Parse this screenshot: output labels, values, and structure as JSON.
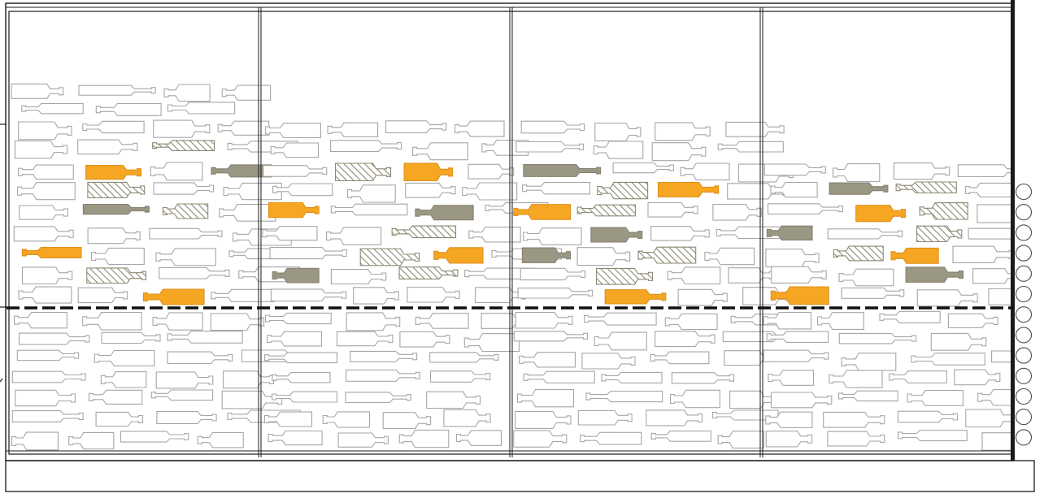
{
  "drawing": {
    "panel_count": 4,
    "knob_count": 13,
    "bottle_outline_color": "#a6a6a6",
    "bottle_fill_color": "#ffffff",
    "highlight_color": "#f5a623",
    "dark_color": "#9b9785",
    "hatch_color": "#8c8872",
    "frame_color": "#1a1a1a",
    "divider_line": "dashed"
  },
  "highlighted_bottles": [
    {
      "panel": 1,
      "row": 4,
      "col": 1,
      "style": "orange"
    },
    {
      "panel": 1,
      "row": 8,
      "col": 0,
      "style": "orange"
    },
    {
      "panel": 1,
      "row": 10,
      "col": 2,
      "style": "orange"
    },
    {
      "panel": 1,
      "row": 4,
      "col": 3,
      "style": "dark"
    },
    {
      "panel": 1,
      "row": 6,
      "col": 1,
      "style": "dark"
    },
    {
      "panel": 1,
      "row": 3,
      "col": 2,
      "style": "hatched"
    },
    {
      "panel": 1,
      "row": 5,
      "col": 1,
      "style": "hatched"
    },
    {
      "panel": 1,
      "row": 6,
      "col": 2,
      "style": "hatched"
    },
    {
      "panel": 1,
      "row": 9,
      "col": 1,
      "style": "hatched"
    },
    {
      "panel": 2,
      "row": 4,
      "col": 2,
      "style": "orange"
    },
    {
      "panel": 2,
      "row": 6,
      "col": 0,
      "style": "orange"
    },
    {
      "panel": 2,
      "row": 8,
      "col": 2,
      "style": "orange"
    },
    {
      "panel": 2,
      "row": 6,
      "col": 2,
      "style": "dark"
    },
    {
      "panel": 2,
      "row": 9,
      "col": 0,
      "style": "dark"
    },
    {
      "panel": 2,
      "row": 4,
      "col": 1,
      "style": "hatched"
    },
    {
      "panel": 2,
      "row": 7,
      "col": 2,
      "style": "hatched"
    },
    {
      "panel": 2,
      "row": 8,
      "col": 1,
      "style": "hatched"
    },
    {
      "panel": 2,
      "row": 9,
      "col": 2,
      "style": "hatched"
    },
    {
      "panel": 3,
      "row": 5,
      "col": 2,
      "style": "orange"
    },
    {
      "panel": 3,
      "row": 6,
      "col": 0,
      "style": "orange"
    },
    {
      "panel": 3,
      "row": 10,
      "col": 1,
      "style": "orange"
    },
    {
      "panel": 3,
      "row": 4,
      "col": 0,
      "style": "dark"
    },
    {
      "panel": 3,
      "row": 7,
      "col": 1,
      "style": "dark"
    },
    {
      "panel": 3,
      "row": 8,
      "col": 0,
      "style": "dark"
    },
    {
      "panel": 3,
      "row": 5,
      "col": 1,
      "style": "hatched"
    },
    {
      "panel": 3,
      "row": 6,
      "col": 1,
      "style": "hatched"
    },
    {
      "panel": 3,
      "row": 8,
      "col": 2,
      "style": "hatched"
    },
    {
      "panel": 3,
      "row": 9,
      "col": 1,
      "style": "hatched"
    },
    {
      "panel": 4,
      "row": 6,
      "col": 1,
      "style": "orange"
    },
    {
      "panel": 4,
      "row": 8,
      "col": 2,
      "style": "orange"
    },
    {
      "panel": 4,
      "row": 10,
      "col": 0,
      "style": "orange"
    },
    {
      "panel": 4,
      "row": 5,
      "col": 1,
      "style": "dark"
    },
    {
      "panel": 4,
      "row": 7,
      "col": 0,
      "style": "dark"
    },
    {
      "panel": 4,
      "row": 9,
      "col": 2,
      "style": "dark"
    },
    {
      "panel": 4,
      "row": 5,
      "col": 2,
      "style": "hatched"
    },
    {
      "panel": 4,
      "row": 6,
      "col": 2,
      "style": "hatched"
    },
    {
      "panel": 4,
      "row": 7,
      "col": 2,
      "style": "hatched"
    },
    {
      "panel": 4,
      "row": 8,
      "col": 1,
      "style": "hatched"
    }
  ]
}
